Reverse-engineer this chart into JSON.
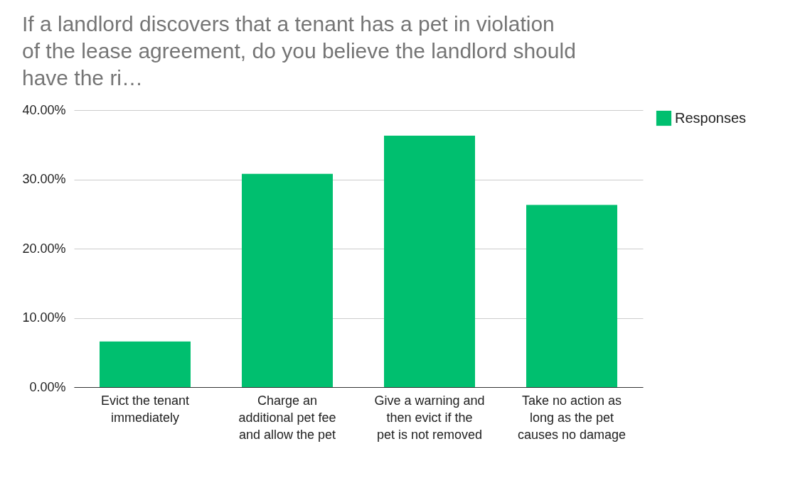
{
  "chart_data": {
    "type": "bar",
    "title": "If a landlord discovers that a tenant has a pet in violation of the lease agreement, do you believe the landlord should have the ri…",
    "categories": [
      "Evict the tenant immediately",
      "Charge an additional pet fee and allow the pet",
      "Give a warning and then evict if the pet is not removed",
      "Take no action as long as the pet causes no damage"
    ],
    "series": [
      {
        "name": "Responses",
        "color": "#00bf6f",
        "values": [
          6.6,
          30.8,
          36.3,
          26.3
        ]
      }
    ],
    "ylim": [
      0,
      40
    ],
    "yticks": [
      {
        "value": 0,
        "label": "0.00%"
      },
      {
        "value": 10,
        "label": "10.00%"
      },
      {
        "value": 20,
        "label": "20.00%"
      },
      {
        "value": 30,
        "label": "30.00%"
      },
      {
        "value": 40,
        "label": "40.00%"
      }
    ],
    "grid": "y",
    "legend": "top right"
  }
}
